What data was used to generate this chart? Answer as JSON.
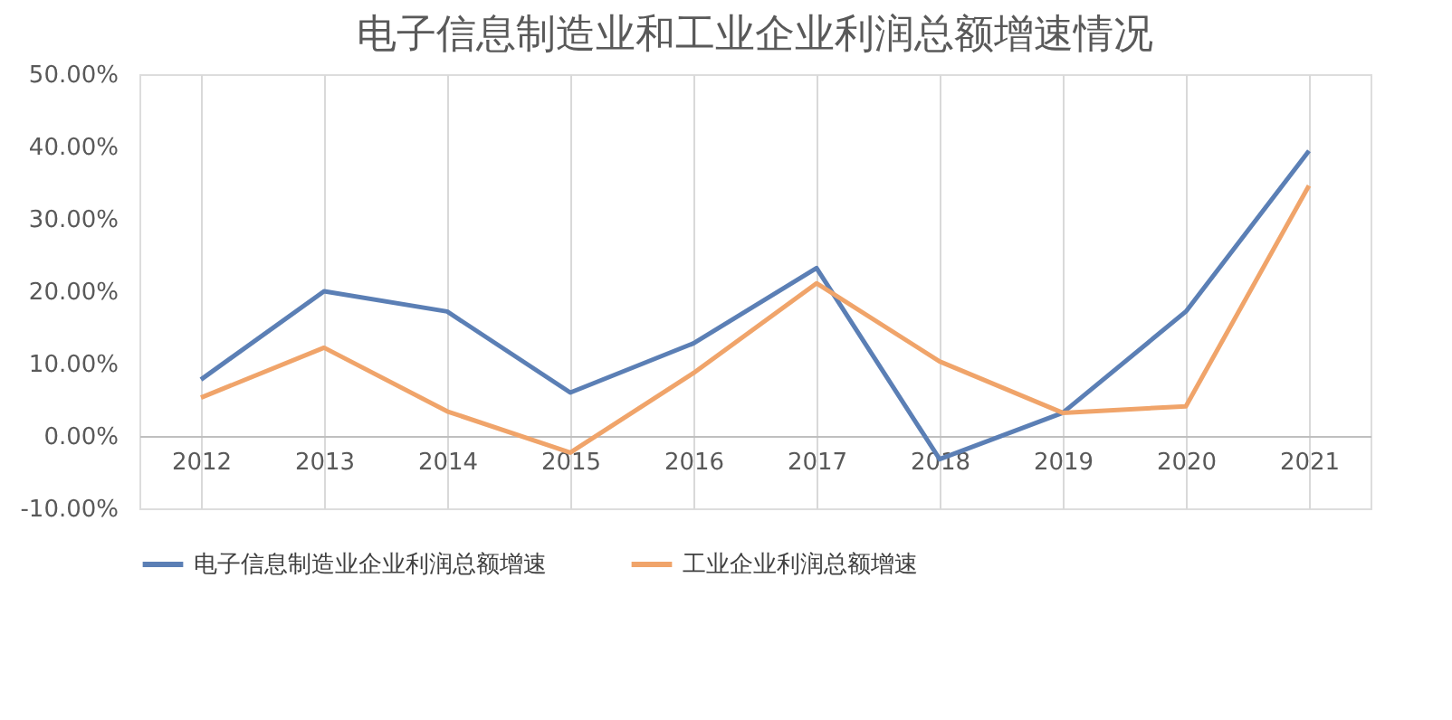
{
  "chart_data": {
    "type": "line",
    "title": "电子信息制造业和工业企业利润总额增速情况",
    "categories": [
      "2012",
      "2013",
      "2014",
      "2015",
      "2016",
      "2017",
      "2018",
      "2019",
      "2020",
      "2021"
    ],
    "series": [
      {
        "name": "电子信息制造业企业利润总额增速",
        "color": "#5b7fb5",
        "values": [
          7.8,
          20.0,
          17.2,
          6.0,
          12.8,
          23.2,
          -3.2,
          3.2,
          17.2,
          39.4
        ]
      },
      {
        "name": "工业企业利润总额增速",
        "color": "#f0a46a",
        "values": [
          5.3,
          12.2,
          3.4,
          -2.3,
          8.7,
          21.1,
          10.3,
          3.2,
          4.1,
          34.6
        ]
      }
    ],
    "ylim": [
      -10,
      50
    ],
    "yticks": [
      {
        "value": -10,
        "label": "-10.00%"
      },
      {
        "value": 0,
        "label": "0.00%"
      },
      {
        "value": 10,
        "label": "10.00%"
      },
      {
        "value": 20,
        "label": "20.00%"
      },
      {
        "value": 30,
        "label": "30.00%"
      },
      {
        "value": 40,
        "label": "40.00%"
      },
      {
        "value": 50,
        "label": "50.00%"
      }
    ],
    "grid": "x",
    "legend": "bottom",
    "marker": "none",
    "line_style": "solid"
  }
}
